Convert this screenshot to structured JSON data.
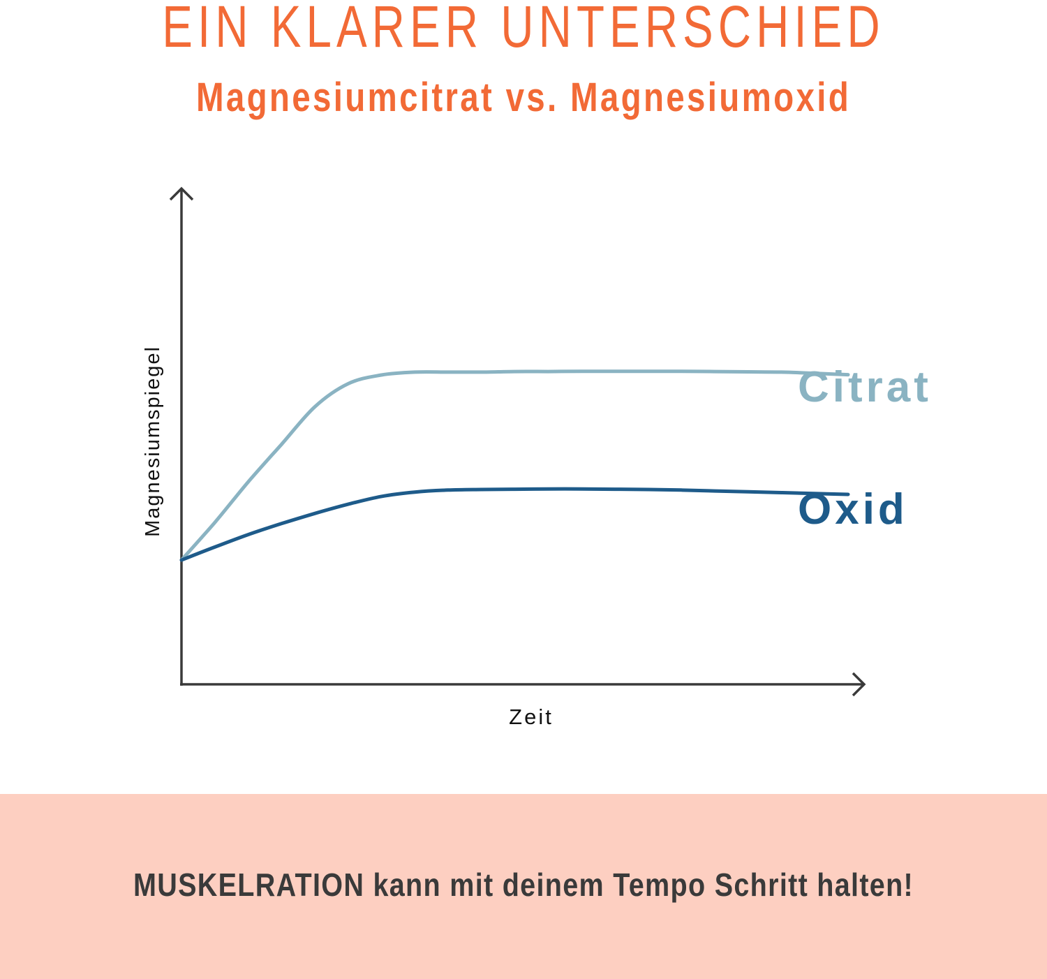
{
  "header": {
    "title": "EIN KLARER UNTERSCHIED",
    "subtitle": "Magnesiumcitrat vs. Magnesiumoxid"
  },
  "chart_data": {
    "type": "line",
    "xlabel": "Zeit",
    "ylabel": "Magnesiumspiegel",
    "xlim": [
      0,
      100
    ],
    "ylim": [
      0,
      100
    ],
    "grid": false,
    "x": [
      0,
      5,
      10,
      15,
      20,
      25,
      30,
      35,
      40,
      45,
      50,
      55,
      60,
      65,
      70,
      75,
      80,
      85,
      90,
      95,
      100
    ],
    "series": [
      {
        "name": "Citrat",
        "color": "#8ab3c2",
        "values": [
          0,
          13,
          27,
          40,
          53,
          61,
          64,
          65,
          65,
          65,
          65.2,
          65.2,
          65.3,
          65.3,
          65.3,
          65.3,
          65.2,
          65.1,
          65,
          64.6,
          64.1
        ]
      },
      {
        "name": "Oxid",
        "color": "#1e5b8a",
        "values": [
          0,
          4.5,
          8.8,
          12.6,
          16.1,
          19.3,
          22,
          23.5,
          24.2,
          24.4,
          24.5,
          24.6,
          24.6,
          24.5,
          24.4,
          24.2,
          23.9,
          23.6,
          23.3,
          23,
          22.7
        ]
      }
    ]
  },
  "footer": {
    "text": "MUSKELRATION kann mit deinem Tempo Schritt halten!"
  },
  "colors": {
    "accent": "#f26a36",
    "axis": "#3a3a3a",
    "footer_bg": "#fdcfc1"
  }
}
